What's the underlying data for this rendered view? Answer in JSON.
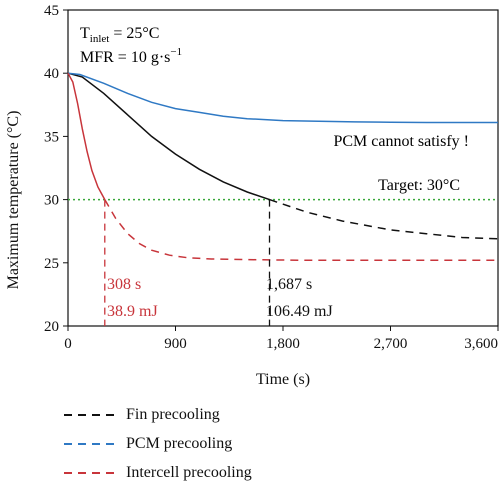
{
  "chart_data": {
    "type": "line",
    "xlabel": "Time (s)",
    "ylabel": "Maximum temperature (°C)",
    "xlim": [
      0,
      3600
    ],
    "ylim": [
      20,
      45
    ],
    "xticks": [
      0,
      900,
      1800,
      2700,
      3600
    ],
    "xtick_labels": [
      "0",
      "900",
      "1,800",
      "2,700",
      "3,600"
    ],
    "yticks": [
      20,
      25,
      30,
      35,
      40,
      45
    ],
    "ytick_labels": [
      "20",
      "25",
      "30",
      "35",
      "40",
      "45"
    ],
    "conditions": {
      "inlet_main": "T",
      "inlet_sub": "inlet",
      "inlet_value": " = 25°C",
      "mfr_main": "MFR = 10 g·s",
      "mfr_sup": "−1"
    },
    "target": {
      "y": 30,
      "label": "Target: 30°C",
      "color": "#3aa83a"
    },
    "series": [
      {
        "name": "Fin precooling",
        "color": "#111111",
        "switch_x": 1687,
        "x": [
          0,
          120,
          300,
          500,
          700,
          900,
          1100,
          1300,
          1500,
          1687,
          2000,
          2300,
          2700,
          3000,
          3300,
          3600
        ],
        "y": [
          40,
          39.7,
          38.4,
          36.7,
          35.0,
          33.6,
          32.4,
          31.4,
          30.6,
          30.0,
          29.0,
          28.3,
          27.6,
          27.3,
          27.0,
          26.9
        ]
      },
      {
        "name": "PCM precooling",
        "color": "#2f79c4",
        "x": [
          0,
          100,
          300,
          500,
          700,
          900,
          1100,
          1300,
          1500,
          1800,
          2100,
          2400,
          2700,
          3000,
          3300,
          3600
        ],
        "y": [
          40,
          39.9,
          39.2,
          38.4,
          37.7,
          37.2,
          36.9,
          36.6,
          36.4,
          36.25,
          36.2,
          36.15,
          36.12,
          36.1,
          36.1,
          36.1
        ]
      },
      {
        "name": "Intercell precooling",
        "color": "#c8353b",
        "switch_x": 308,
        "x": [
          0,
          40,
          80,
          120,
          160,
          200,
          250,
          308,
          400,
          500,
          600,
          700,
          850,
          1000,
          1200,
          1500,
          2000,
          2500,
          3000,
          3600
        ],
        "y": [
          40,
          39.3,
          37.6,
          35.6,
          33.8,
          32.3,
          31.0,
          30.0,
          28.5,
          27.3,
          26.5,
          26.0,
          25.6,
          25.4,
          25.3,
          25.25,
          25.2,
          25.2,
          25.2,
          25.2
        ]
      }
    ],
    "markers": [
      {
        "series": "Intercell precooling",
        "x": 308,
        "y": 30,
        "time_label": "308 s",
        "energy_label": "38.9 mJ",
        "color": "#c8353b"
      },
      {
        "series": "Fin precooling",
        "x": 1687,
        "y": 30,
        "time_label": "1,687 s",
        "energy_label": "106.49 mJ",
        "color": "#111111"
      }
    ],
    "annotations": [
      {
        "text": "PCM cannot satisfy !",
        "color": "#111111"
      }
    ],
    "legend": {
      "position": "below",
      "items": [
        {
          "label": "Fin precooling",
          "color": "#111111"
        },
        {
          "label": "PCM precooling",
          "color": "#2f79c4"
        },
        {
          "label": "Intercell precooling",
          "color": "#c8353b"
        }
      ]
    }
  }
}
